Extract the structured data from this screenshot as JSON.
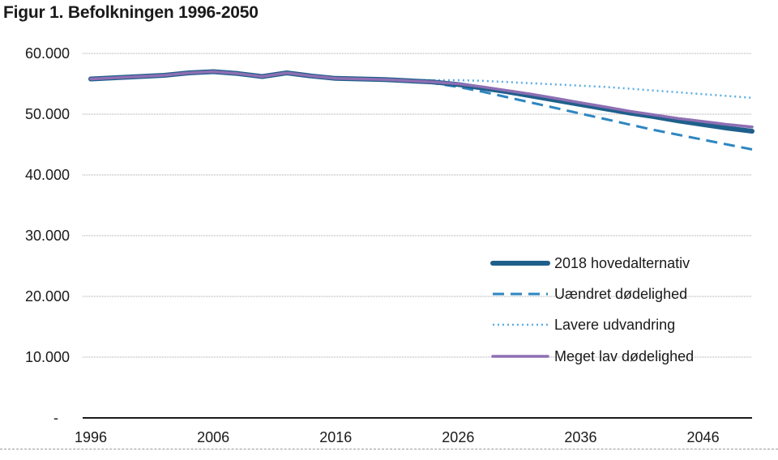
{
  "title": "Figur 1. Befolkningen 1996-2050",
  "chart_data": {
    "type": "line",
    "title": "Figur 1. Befolkningen 1996-2050",
    "xlabel": "",
    "ylabel": "",
    "xlim": [
      1996,
      2050
    ],
    "ylim": [
      0,
      60000
    ],
    "x_ticks": [
      1996,
      2006,
      2016,
      2026,
      2036,
      2046
    ],
    "y_ticks": [
      0,
      10000,
      20000,
      30000,
      40000,
      50000,
      60000
    ],
    "y_tick_labels": [
      "-",
      "10.000",
      "20.000",
      "30.000",
      "40.000",
      "50.000",
      "60.000"
    ],
    "legend_position": "right",
    "series": [
      {
        "name": "2018 hovedalternativ",
        "color": "#1f5f8b",
        "style": "solid-thick",
        "x": [
          1996,
          1998,
          2000,
          2002,
          2004,
          2006,
          2008,
          2010,
          2012,
          2014,
          2016,
          2018,
          2020,
          2022,
          2024,
          2026,
          2028,
          2030,
          2032,
          2034,
          2036,
          2038,
          2040,
          2042,
          2044,
          2046,
          2048,
          2050
        ],
        "values": [
          55800,
          56000,
          56200,
          56400,
          56800,
          57000,
          56700,
          56200,
          56800,
          56300,
          55900,
          55800,
          55700,
          55500,
          55300,
          54900,
          54300,
          53700,
          53000,
          52300,
          51600,
          50900,
          50200,
          49600,
          48900,
          48300,
          47700,
          47200
        ]
      },
      {
        "name": "Uændret dødelighed",
        "color": "#2e86c1",
        "style": "dashed",
        "x": [
          2022,
          2024,
          2026,
          2028,
          2030,
          2032,
          2034,
          2036,
          2038,
          2040,
          2042,
          2044,
          2046,
          2048,
          2050
        ],
        "values": [
          55500,
          55100,
          54500,
          53700,
          52800,
          51900,
          51000,
          50100,
          49200,
          48300,
          47400,
          46600,
          45800,
          45000,
          44200
        ]
      },
      {
        "name": "Lavere udvandring",
        "color": "#5dade2",
        "style": "dotted",
        "x": [
          2022,
          2024,
          2026,
          2028,
          2030,
          2032,
          2034,
          2036,
          2038,
          2040,
          2042,
          2044,
          2046,
          2048,
          2050
        ],
        "values": [
          55600,
          55600,
          55600,
          55500,
          55300,
          55100,
          54900,
          54700,
          54500,
          54200,
          53900,
          53600,
          53300,
          53000,
          52700
        ]
      },
      {
        "name": "Meget lav dødelighed",
        "color": "#8e6fb3",
        "style": "solid",
        "x": [
          1996,
          1998,
          2000,
          2002,
          2004,
          2006,
          2008,
          2010,
          2012,
          2014,
          2016,
          2018,
          2020,
          2022,
          2024,
          2026,
          2028,
          2030,
          2032,
          2034,
          2036,
          2038,
          2040,
          2042,
          2044,
          2046,
          2048,
          2050
        ],
        "values": [
          55800,
          56000,
          56200,
          56400,
          56800,
          57000,
          56700,
          56200,
          56800,
          56300,
          55900,
          55800,
          55700,
          55500,
          55300,
          55000,
          54500,
          53900,
          53300,
          52600,
          51900,
          51200,
          50500,
          49900,
          49300,
          48800,
          48300,
          47900
        ]
      }
    ]
  }
}
